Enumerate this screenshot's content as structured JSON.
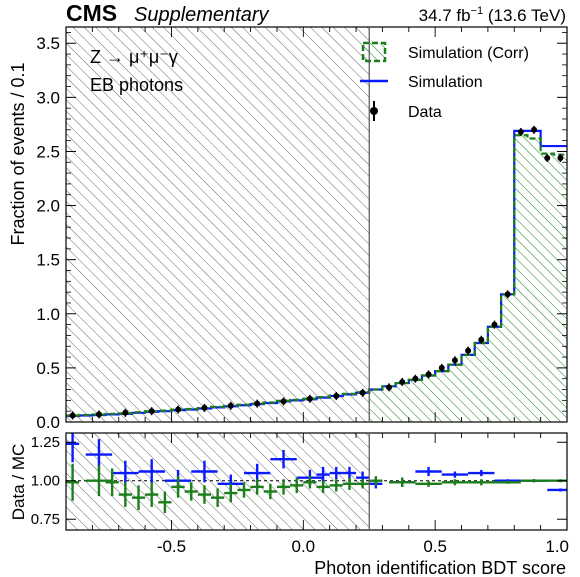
{
  "header": {
    "cms": "CMS",
    "supplementary": "Supplementary",
    "lumi": "34.7 fb",
    "lumi_exp": "−1",
    "energy": " (13.6 TeV)"
  },
  "annotation": {
    "process": "Z → μ⁺μ⁻γ",
    "category": "EB photons"
  },
  "legend": {
    "corr": "Simulation (Corr)",
    "sim": "Simulation",
    "data": "Data"
  },
  "colors": {
    "corr": "#1a7f1a",
    "sim": "#0a1aff",
    "data": "#000000",
    "hatch": "#555555"
  },
  "chart_data": [
    {
      "type": "histogram",
      "ylabel": "Fraction of events / 0.1",
      "xlim": [
        -0.9,
        1.0
      ],
      "ylim": [
        0,
        3.65
      ],
      "yticks": [
        "0.0",
        "0.5",
        "1.0",
        "1.5",
        "2.0",
        "2.5",
        "3.0",
        "3.5"
      ],
      "cut": 0.25,
      "bin_edges": [
        -0.9,
        -0.85,
        -0.8,
        -0.75,
        -0.7,
        -0.65,
        -0.6,
        -0.55,
        -0.5,
        -0.45,
        -0.4,
        -0.35,
        -0.3,
        -0.25,
        -0.2,
        -0.15,
        -0.1,
        -0.05,
        0.0,
        0.05,
        0.1,
        0.15,
        0.2,
        0.25,
        0.3,
        0.35,
        0.4,
        0.45,
        0.5,
        0.55,
        0.6,
        0.65,
        0.7,
        0.75,
        0.8,
        0.85,
        0.9,
        0.95,
        1.0
      ],
      "series": [
        {
          "name": "Simulation (Corr)",
          "values": [
            0.06,
            0.065,
            0.07,
            0.075,
            0.08,
            0.09,
            0.1,
            0.105,
            0.115,
            0.12,
            0.13,
            0.14,
            0.15,
            0.16,
            0.17,
            0.18,
            0.195,
            0.205,
            0.215,
            0.23,
            0.245,
            0.26,
            0.275,
            0.3,
            0.33,
            0.36,
            0.39,
            0.43,
            0.47,
            0.53,
            0.62,
            0.73,
            0.88,
            1.18,
            2.65,
            2.62,
            2.48,
            2.47
          ]
        },
        {
          "name": "Simulation",
          "values": [
            0.055,
            0.06,
            0.065,
            0.07,
            0.075,
            0.085,
            0.095,
            0.1,
            0.11,
            0.115,
            0.125,
            0.135,
            0.145,
            0.155,
            0.165,
            0.175,
            0.19,
            0.2,
            0.21,
            0.225,
            0.24,
            0.255,
            0.27,
            0.3,
            0.33,
            0.36,
            0.39,
            0.43,
            0.47,
            0.53,
            0.62,
            0.73,
            0.88,
            1.18,
            2.69,
            2.69,
            2.55,
            2.55
          ]
        }
      ],
      "data": {
        "name": "Data",
        "x": [
          -0.875,
          -0.775,
          -0.675,
          -0.575,
          -0.475,
          -0.375,
          -0.275,
          -0.175,
          -0.075,
          0.025,
          0.125,
          0.225,
          0.325,
          0.375,
          0.425,
          0.475,
          0.525,
          0.575,
          0.625,
          0.675,
          0.725,
          0.775,
          0.825,
          0.875,
          0.925,
          0.975
        ],
        "y": [
          0.06,
          0.07,
          0.085,
          0.1,
          0.115,
          0.13,
          0.15,
          0.17,
          0.19,
          0.215,
          0.24,
          0.27,
          0.32,
          0.37,
          0.4,
          0.44,
          0.5,
          0.57,
          0.66,
          0.76,
          0.9,
          1.18,
          2.68,
          2.7,
          2.44,
          2.44
        ]
      }
    },
    {
      "type": "ratio",
      "ylabel": "Data / MC",
      "xlabel": "Photon identification BDT score",
      "xlim": [
        -0.9,
        1.0
      ],
      "ylim": [
        0.68,
        1.31
      ],
      "yticks": [
        "0.75",
        "1.00",
        "1.25"
      ],
      "xticks": [
        "-0.5",
        "0.0",
        "0.5",
        "1.0"
      ],
      "reference": 1.0,
      "series": [
        {
          "name": "Simulation",
          "x": [
            -0.875,
            -0.775,
            -0.675,
            -0.575,
            -0.475,
            -0.375,
            -0.275,
            -0.175,
            -0.075,
            0.025,
            0.075,
            0.125,
            0.175,
            0.225,
            0.275,
            0.375,
            0.475,
            0.575,
            0.675,
            0.775,
            0.875,
            0.975
          ],
          "y": [
            1.24,
            1.17,
            1.05,
            1.06,
            1.0,
            1.06,
            0.98,
            1.05,
            1.14,
            1.02,
            1.04,
            1.05,
            1.05,
            1.02,
            0.98,
            0.99,
            1.06,
            1.04,
            1.05,
            1.0,
            1.0,
            0.94
          ],
          "err": [
            0.12,
            0.1,
            0.08,
            0.08,
            0.07,
            0.07,
            0.06,
            0.06,
            0.06,
            0.05,
            0.05,
            0.04,
            0.04,
            0.04,
            0.03,
            0.03,
            0.03,
            0.02,
            0.02,
            0.01,
            0.01,
            0.01
          ]
        },
        {
          "name": "Simulation (Corr)",
          "x": [
            -0.875,
            -0.775,
            -0.725,
            -0.675,
            -0.625,
            -0.575,
            -0.525,
            -0.475,
            -0.425,
            -0.375,
            -0.325,
            -0.275,
            -0.225,
            -0.175,
            -0.125,
            -0.075,
            -0.025,
            0.025,
            0.075,
            0.125,
            0.175,
            0.225,
            0.275,
            0.375,
            0.475,
            0.575,
            0.675,
            0.775,
            0.875,
            0.975
          ],
          "y": [
            0.99,
            1.0,
            0.99,
            0.91,
            0.89,
            0.91,
            0.86,
            0.96,
            0.93,
            0.91,
            0.89,
            0.92,
            0.94,
            0.96,
            0.93,
            0.96,
            0.97,
            0.99,
            0.96,
            0.97,
            0.98,
            0.98,
            1.0,
            0.99,
            0.98,
            0.99,
            0.99,
            0.99,
            1.0,
            1.0
          ],
          "err": [
            0.12,
            0.1,
            0.09,
            0.08,
            0.08,
            0.08,
            0.07,
            0.07,
            0.06,
            0.06,
            0.06,
            0.06,
            0.05,
            0.05,
            0.05,
            0.05,
            0.05,
            0.04,
            0.04,
            0.04,
            0.04,
            0.03,
            0.03,
            0.03,
            0.02,
            0.02,
            0.02,
            0.01,
            0.01,
            0.01
          ]
        }
      ]
    }
  ]
}
